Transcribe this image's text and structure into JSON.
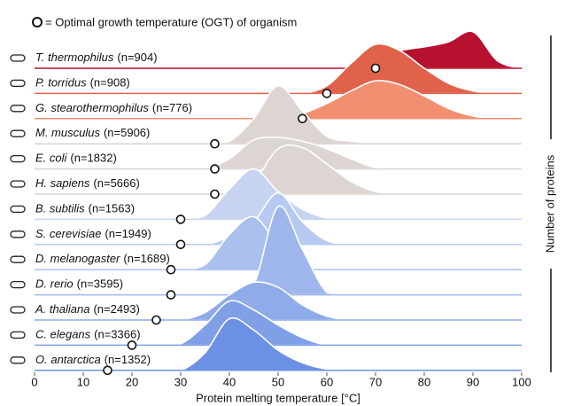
{
  "chart_data": {
    "type": "ridgeline",
    "legend_text": "= Optimal growth temperature (OGT) of organism",
    "xlabel": "Protein melting temperature [°C]",
    "ylabel": "Number of proteins",
    "xlim": [
      0,
      100
    ],
    "xticks": [
      0,
      10,
      20,
      30,
      40,
      50,
      60,
      70,
      80,
      90,
      100
    ],
    "x": [
      20,
      25,
      30,
      35,
      40,
      45,
      50,
      55,
      60,
      65,
      70,
      75,
      80,
      85,
      90,
      95,
      100
    ],
    "series": [
      {
        "name": "T. thermophilus",
        "count_label": "(n=904)",
        "color": "#b8102f",
        "ogt": 70,
        "values": [
          0,
          0,
          0,
          0,
          0,
          0,
          0,
          0,
          0,
          0.05,
          0.35,
          0.7,
          0.85,
          1.05,
          1.45,
          0.3,
          0
        ]
      },
      {
        "name": "P. torridus",
        "count_label": "(n=908)",
        "color": "#e0624b",
        "ogt": 60,
        "values": [
          0,
          0,
          0,
          0,
          0,
          0,
          0,
          0,
          0.3,
          1.2,
          1.95,
          1.7,
          1.0,
          0.4,
          0.1,
          0,
          0
        ]
      },
      {
        "name": "G. stearothermophilus",
        "count_label": "(n=776)",
        "color": "#f28f71",
        "ogt": 55,
        "values": [
          0,
          0,
          0,
          0,
          0,
          0,
          0,
          0.2,
          0.6,
          1.1,
          1.5,
          1.35,
          0.9,
          0.4,
          0.1,
          0,
          0
        ]
      },
      {
        "name": "M. musculus",
        "count_label": "(n=5906)",
        "color": "#dcd5d1",
        "ogt": 37,
        "values": [
          0,
          0,
          0,
          0,
          0.1,
          1.0,
          2.3,
          1.3,
          0.3,
          0.1,
          0,
          0,
          0,
          0,
          0,
          0,
          0
        ]
      },
      {
        "name": "E. coli",
        "count_label": "(n=1832)",
        "color": "#dcd5d1",
        "ogt": 37,
        "values": [
          0,
          0,
          0,
          0,
          0.4,
          1.15,
          1.25,
          1.1,
          0.8,
          0.4,
          0.05,
          0,
          0,
          0,
          0,
          0,
          0
        ]
      },
      {
        "name": "H. sapiens",
        "count_label": "(n=5666)",
        "color": "#dcd5d1",
        "ogt": 37,
        "values": [
          0,
          0,
          0,
          0,
          0.1,
          0.5,
          1.8,
          1.85,
          1.2,
          0.5,
          0.1,
          0,
          0,
          0,
          0,
          0,
          0
        ]
      },
      {
        "name": "B. subtilis",
        "count_label": "(n=1563)",
        "color": "#c6d4f1",
        "ogt": 30,
        "values": [
          0,
          0,
          0,
          0.15,
          1.2,
          2.0,
          1.1,
          0.4,
          0.05,
          0,
          0,
          0,
          0,
          0,
          0,
          0,
          0
        ]
      },
      {
        "name": "S. cerevisiae",
        "count_label": "(n=1949)",
        "color": "#b6c9f0",
        "ogt": 30,
        "values": [
          0,
          0,
          0,
          0,
          0.3,
          0.9,
          2.05,
          0.9,
          0.15,
          0,
          0,
          0,
          0,
          0,
          0,
          0,
          0
        ]
      },
      {
        "name": "D. melanogaster",
        "count_label": "(n=1689)",
        "color": "#aac0ee",
        "ogt": 28,
        "values": [
          0,
          0,
          0,
          0.2,
          1.4,
          2.1,
          1.0,
          0.2,
          0,
          0,
          0,
          0,
          0,
          0,
          0,
          0,
          0
        ]
      },
      {
        "name": "D. rerio",
        "count_label": "(n=3595)",
        "color": "#9eb6ec",
        "ogt": 28,
        "values": [
          0,
          0,
          0,
          0,
          0,
          0.4,
          3.5,
          1.8,
          0.1,
          0,
          0,
          0,
          0,
          0,
          0,
          0,
          0
        ]
      },
      {
        "name": "A. thaliana",
        "count_label": "(n=2493)",
        "color": "#8fabe9",
        "ogt": 25,
        "values": [
          0,
          0,
          0,
          0.3,
          1.0,
          1.5,
          1.3,
          0.6,
          0.15,
          0,
          0,
          0,
          0,
          0,
          0,
          0,
          0
        ]
      },
      {
        "name": "C. elegans",
        "count_label": "(n=3366)",
        "color": "#7f9fe6",
        "ogt": 20,
        "values": [
          0,
          0,
          0.05,
          0.8,
          1.75,
          1.4,
          0.8,
          0.3,
          0,
          0,
          0,
          0,
          0,
          0,
          0,
          0,
          0
        ]
      },
      {
        "name": "O. antarctica",
        "count_label": "(n=1352)",
        "color": "#6c90e3",
        "ogt": 15,
        "values": [
          0,
          0,
          0,
          0.7,
          2.05,
          1.6,
          0.8,
          0.3,
          0.05,
          0,
          0,
          0,
          0,
          0,
          0,
          0,
          0
        ]
      }
    ]
  }
}
